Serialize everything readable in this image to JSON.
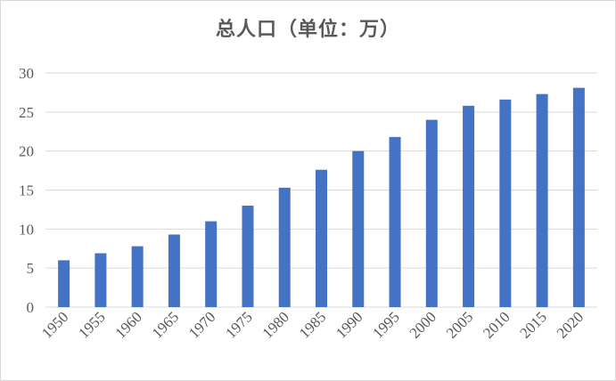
{
  "chart_data": {
    "type": "bar",
    "title": "总人口（单位：万）",
    "categories": [
      "1950",
      "1955",
      "1960",
      "1965",
      "1970",
      "1975",
      "1980",
      "1985",
      "1990",
      "1995",
      "2000",
      "2005",
      "2010",
      "2015",
      "2020"
    ],
    "values": [
      6.0,
      6.9,
      7.8,
      9.3,
      11.0,
      13.0,
      15.3,
      17.6,
      20.0,
      21.8,
      24.0,
      25.8,
      26.6,
      27.3,
      28.1
    ],
    "ylim": [
      0,
      30
    ],
    "yticks": [
      0,
      5,
      10,
      15,
      20,
      25,
      30
    ],
    "xlabel": "",
    "ylabel": "",
    "grid": true,
    "bar_color": "#4472c4",
    "grid_color": "#d9d9d9"
  }
}
